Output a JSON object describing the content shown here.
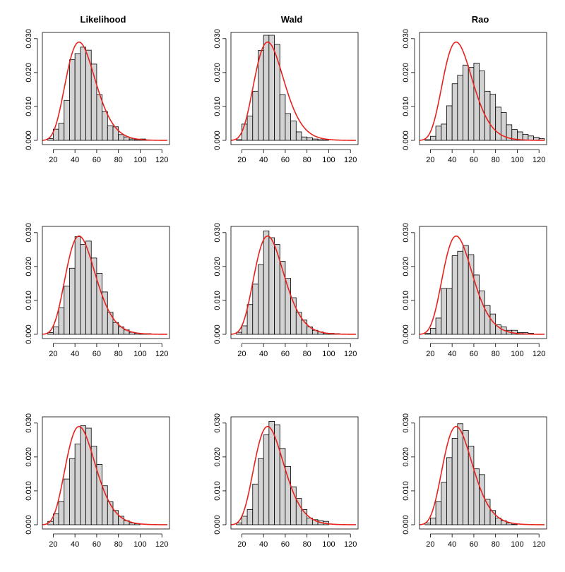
{
  "figure": {
    "column_titles": [
      "Likelihood",
      "Wald",
      "Rao"
    ]
  },
  "colors": {
    "bar_fill": "#d3d3d3",
    "bar_stroke": "#000000",
    "curve": "#e8231d",
    "axis": "#000000"
  },
  "chart_data": [
    {
      "type": "bar",
      "title": "Likelihood",
      "row": 1,
      "col": 1,
      "xlim": [
        10,
        127
      ],
      "ylim": [
        0,
        0.031
      ],
      "bin_start": 15,
      "bin_width": 5,
      "x_ticks": [
        20,
        40,
        60,
        80,
        100,
        120
      ],
      "y_ticks": [
        0.0,
        0.01,
        0.02,
        0.03
      ],
      "y_tick_labels": [
        "0.000",
        "0.010",
        "0.020",
        "0.030"
      ],
      "values": [
        0.0005,
        0.0033,
        0.005,
        0.0118,
        0.0238,
        0.0256,
        0.0275,
        0.0266,
        0.0225,
        0.0135,
        0.0085,
        0.0043,
        0.004,
        0.0017,
        0.001,
        0.0004,
        0.0002,
        0.0004,
        0.0001,
        0.0001
      ],
      "curve": {
        "type": "gamma",
        "mean": 48,
        "sd": 14.3
      }
    },
    {
      "type": "bar",
      "title": "Wald",
      "row": 1,
      "col": 2,
      "xlim": [
        10,
        127
      ],
      "ylim": [
        0,
        0.031
      ],
      "bin_start": 15,
      "bin_width": 5,
      "x_ticks": [
        20,
        40,
        60,
        80,
        100,
        120
      ],
      "y_ticks": [
        0.0,
        0.01,
        0.02,
        0.03
      ],
      "y_tick_labels": [
        "0.000",
        "0.010",
        "0.020",
        "0.030"
      ],
      "values": [
        0.0002,
        0.0048,
        0.0072,
        0.0145,
        0.0265,
        0.031,
        0.031,
        0.0283,
        0.0135,
        0.0079,
        0.0057,
        0.0025,
        0.001,
        0.0008,
        0.0004,
        0.0002,
        0.0001
      ],
      "curve": {
        "type": "gamma",
        "mean": 48,
        "sd": 14.3
      }
    },
    {
      "type": "bar",
      "title": "Rao",
      "row": 1,
      "col": 3,
      "xlim": [
        10,
        127
      ],
      "ylim": [
        0,
        0.031
      ],
      "bin_start": 15,
      "bin_width": 5,
      "x_ticks": [
        20,
        40,
        60,
        80,
        100,
        120
      ],
      "y_ticks": [
        0.0,
        0.01,
        0.02,
        0.03
      ],
      "y_tick_labels": [
        "0.000",
        "0.010",
        "0.020",
        "0.030"
      ],
      "values": [
        0.0002,
        0.0012,
        0.0042,
        0.0048,
        0.0102,
        0.0167,
        0.0192,
        0.0222,
        0.0215,
        0.0228,
        0.0205,
        0.0145,
        0.0136,
        0.0098,
        0.0082,
        0.0046,
        0.0032,
        0.0025,
        0.0018,
        0.0013,
        0.0009,
        0.0005
      ],
      "curve": {
        "type": "gamma",
        "mean": 48,
        "sd": 14.3
      }
    },
    {
      "type": "bar",
      "title": "",
      "row": 2,
      "col": 1,
      "xlim": [
        10,
        127
      ],
      "ylim": [
        0,
        0.031
      ],
      "bin_start": 15,
      "bin_width": 5,
      "x_ticks": [
        20,
        40,
        60,
        80,
        100,
        120
      ],
      "y_ticks": [
        0.0,
        0.01,
        0.02,
        0.03
      ],
      "y_tick_labels": [
        "0.000",
        "0.010",
        "0.020",
        "0.030"
      ],
      "values": [
        0.0005,
        0.0022,
        0.0078,
        0.0142,
        0.0195,
        0.0288,
        0.0265,
        0.0275,
        0.0225,
        0.018,
        0.0125,
        0.0065,
        0.0035,
        0.0022,
        0.0013,
        0.0006,
        0.0003,
        0.0002,
        0.0002,
        0.0001
      ],
      "curve": {
        "type": "gamma",
        "mean": 48,
        "sd": 14.3
      }
    },
    {
      "type": "bar",
      "title": "",
      "row": 2,
      "col": 2,
      "xlim": [
        10,
        127
      ],
      "ylim": [
        0,
        0.031
      ],
      "bin_start": 15,
      "bin_width": 5,
      "x_ticks": [
        20,
        40,
        60,
        80,
        100,
        120
      ],
      "y_ticks": [
        0.0,
        0.01,
        0.02,
        0.03
      ],
      "y_tick_labels": [
        "0.000",
        "0.010",
        "0.020",
        "0.030"
      ],
      "values": [
        0.0006,
        0.0025,
        0.0088,
        0.0148,
        0.0205,
        0.0305,
        0.0285,
        0.0265,
        0.0215,
        0.0165,
        0.0108,
        0.0065,
        0.0042,
        0.0022,
        0.0012,
        0.0007,
        0.0003,
        0.0003,
        0.0002,
        0.0001
      ],
      "curve": {
        "type": "gamma",
        "mean": 48,
        "sd": 14.3
      }
    },
    {
      "type": "bar",
      "title": "",
      "row": 2,
      "col": 3,
      "xlim": [
        10,
        127
      ],
      "ylim": [
        0,
        0.031
      ],
      "bin_start": 15,
      "bin_width": 5,
      "x_ticks": [
        20,
        40,
        60,
        80,
        100,
        120
      ],
      "y_ticks": [
        0.0,
        0.01,
        0.02,
        0.03
      ],
      "y_tick_labels": [
        "0.000",
        "0.010",
        "0.020",
        "0.030"
      ],
      "values": [
        0.0003,
        0.0018,
        0.0048,
        0.0135,
        0.0135,
        0.0232,
        0.0245,
        0.0262,
        0.0235,
        0.0175,
        0.0128,
        0.0085,
        0.006,
        0.0028,
        0.0022,
        0.0012,
        0.0012,
        0.0005,
        0.0005,
        0.0003
      ],
      "curve": {
        "type": "gamma",
        "mean": 48,
        "sd": 14.3
      }
    },
    {
      "type": "bar",
      "title": "",
      "row": 3,
      "col": 1,
      "xlim": [
        10,
        127
      ],
      "ylim": [
        0,
        0.031
      ],
      "bin_start": 15,
      "bin_width": 5,
      "x_ticks": [
        20,
        40,
        60,
        80,
        100,
        120
      ],
      "y_ticks": [
        0.0,
        0.01,
        0.02,
        0.03
      ],
      "y_tick_labels": [
        "0.000",
        "0.010",
        "0.020",
        "0.030"
      ],
      "values": [
        0.001,
        0.0032,
        0.0068,
        0.0135,
        0.0195,
        0.0238,
        0.0292,
        0.0285,
        0.0232,
        0.0178,
        0.0115,
        0.0068,
        0.0042,
        0.0025,
        0.0012,
        0.0005,
        0.0003
      ],
      "curve": {
        "type": "gamma",
        "mean": 48,
        "sd": 14.3
      }
    },
    {
      "type": "bar",
      "title": "",
      "row": 3,
      "col": 2,
      "xlim": [
        10,
        127
      ],
      "ylim": [
        0,
        0.031
      ],
      "bin_start": 15,
      "bin_width": 5,
      "x_ticks": [
        20,
        40,
        60,
        80,
        100,
        120
      ],
      "y_ticks": [
        0.0,
        0.01,
        0.02,
        0.03
      ],
      "y_tick_labels": [
        "0.000",
        "0.010",
        "0.020",
        "0.030"
      ],
      "values": [
        0.0005,
        0.0025,
        0.0045,
        0.012,
        0.0195,
        0.0265,
        0.0305,
        0.0295,
        0.0225,
        0.0172,
        0.0112,
        0.0078,
        0.0045,
        0.002,
        0.0015,
        0.0012,
        0.001
      ],
      "curve": {
        "type": "gamma",
        "mean": 48,
        "sd": 14.3
      }
    },
    {
      "type": "bar",
      "title": "",
      "row": 3,
      "col": 3,
      "xlim": [
        10,
        127
      ],
      "ylim": [
        0,
        0.031
      ],
      "bin_start": 15,
      "bin_width": 5,
      "x_ticks": [
        20,
        40,
        60,
        80,
        100,
        120
      ],
      "y_ticks": [
        0.0,
        0.01,
        0.02,
        0.03
      ],
      "y_tick_labels": [
        "0.000",
        "0.010",
        "0.020",
        "0.030"
      ],
      "values": [
        0.0005,
        0.002,
        0.0068,
        0.0125,
        0.0198,
        0.0255,
        0.0298,
        0.0278,
        0.0232,
        0.0165,
        0.0148,
        0.0075,
        0.0042,
        0.002,
        0.0012,
        0.0005,
        0.0001
      ],
      "curve": {
        "type": "gamma",
        "mean": 48,
        "sd": 14.3
      }
    }
  ]
}
